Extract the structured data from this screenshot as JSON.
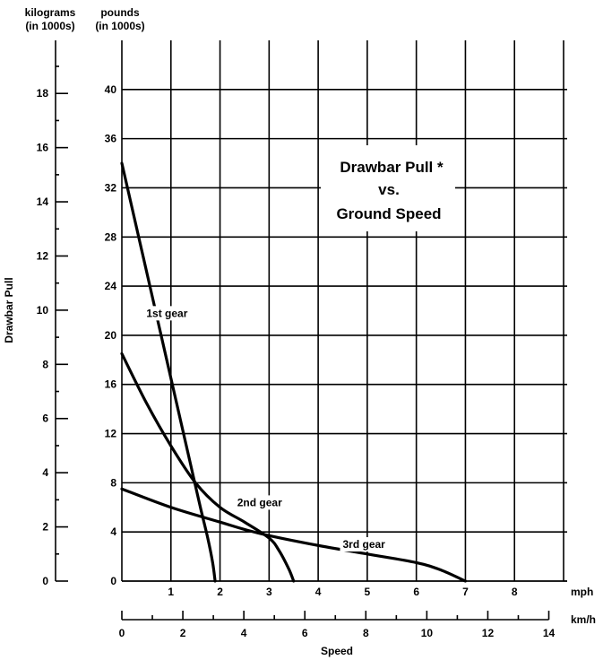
{
  "chart_data": {
    "type": "line",
    "title_lines": [
      "Drawbar Pull *",
      "vs.",
      "Ground Speed"
    ],
    "ylabel": "Drawbar Pull",
    "xlabel": "Speed",
    "left_axis_header": [
      "kilograms",
      "(in 1000s)"
    ],
    "right_axis_header": [
      "pounds",
      "(in 1000s)"
    ],
    "x_unit_mph": "mph",
    "x_unit_kmh": "km/h",
    "xlim_mph": [
      0,
      9
    ],
    "ylim_pounds": [
      0,
      44
    ],
    "ylim_kilograms": [
      0,
      19.96
    ],
    "x_ticks_mph": [
      1,
      2,
      3,
      4,
      5,
      6,
      7,
      8
    ],
    "x_ticks_kmh": [
      0,
      2,
      4,
      6,
      8,
      10,
      12,
      14
    ],
    "y_ticks_pounds": [
      0,
      4,
      8,
      12,
      16,
      20,
      24,
      28,
      32,
      36,
      40
    ],
    "y_ticks_kilograms": [
      0,
      2,
      4,
      6,
      8,
      10,
      12,
      14,
      16,
      18
    ],
    "grid": true,
    "series": [
      {
        "name": "1st gear",
        "x": [
          0,
          0.2,
          0.4,
          0.6,
          0.8,
          1.0,
          1.2,
          1.4,
          1.6,
          1.75,
          1.85,
          1.9
        ],
        "y": [
          34,
          30.5,
          27,
          23.5,
          20,
          16.5,
          13,
          9.5,
          6,
          3.5,
          1.5,
          0
        ]
      },
      {
        "name": "2nd gear",
        "x": [
          0,
          0.5,
          1.0,
          1.5,
          2.0,
          2.5,
          3.0,
          3.2,
          3.4,
          3.5
        ],
        "y": [
          18.5,
          14.5,
          11,
          8,
          6,
          4.8,
          3.5,
          2.5,
          1,
          0
        ]
      },
      {
        "name": "3rd gear",
        "x": [
          0,
          1,
          2,
          2.5,
          3,
          4,
          5,
          6,
          6.5,
          7
        ],
        "y": [
          7.5,
          6,
          4.8,
          4.2,
          3.7,
          2.9,
          2.2,
          1.5,
          0.9,
          0
        ]
      }
    ],
    "series_label_positions_mph": [
      [
        0.5,
        21.5
      ],
      [
        2.35,
        6.1
      ],
      [
        4.5,
        2.7
      ]
    ]
  }
}
